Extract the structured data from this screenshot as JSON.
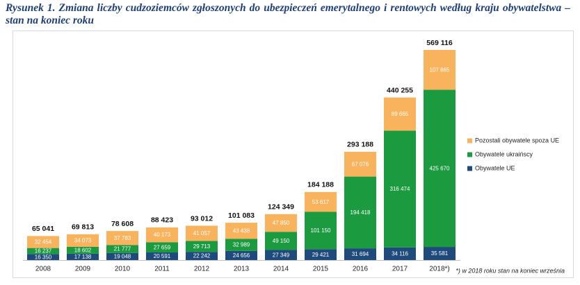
{
  "chart_data": {
    "type": "stacked-bar",
    "title": "Rysunek 1. Zmiana liczby cudzoziemców zgłoszonych do ubezpieczeń emerytalnego i rentowych według kraju obywatelstwa – stan na koniec roku",
    "categories": [
      "2008",
      "2009",
      "2010",
      "2011",
      "2012",
      "2013",
      "2014",
      "2015",
      "2016",
      "2017",
      "2018*)"
    ],
    "series": [
      {
        "name": "Obywatele UE",
        "color": "#1e4a7c",
        "values": [
          16350,
          17138,
          19048,
          20591,
          22242,
          24656,
          27349,
          29421,
          31694,
          34116,
          35581
        ],
        "value_labels": [
          "16 350",
          "17 138",
          "19 048",
          "20 591",
          "22 242",
          "24 656",
          "27 349",
          "29 421",
          "31 694",
          "34 116",
          "35 581"
        ]
      },
      {
        "name": "Obywatele ukraińscy",
        "color": "#1b9a3f",
        "values": [
          16237,
          18602,
          21777,
          27659,
          29713,
          32989,
          49150,
          101150,
          194418,
          316474,
          425670
        ],
        "value_labels": [
          "16 237",
          "18 602",
          "21 777",
          "27 659",
          "29 713",
          "32 989",
          "49 150",
          "101 150",
          "194 418",
          "316 474",
          "425 670"
        ]
      },
      {
        "name": "Pozostali obywatele spoza UE",
        "color": "#f9b35c",
        "values": [
          32454,
          34073,
          37783,
          40173,
          41057,
          43438,
          47850,
          53617,
          67076,
          89665,
          107865
        ],
        "value_labels": [
          "32 454",
          "34 073",
          "37 783",
          "40 173",
          "41 057",
          "43 438",
          "47 850",
          "53 617",
          "67 076",
          "89 665",
          "107 865"
        ]
      }
    ],
    "totals": [
      65041,
      69813,
      78608,
      88423,
      93012,
      101083,
      124349,
      184188,
      293188,
      440255,
      569116
    ],
    "total_labels": [
      "65 041",
      "69 813",
      "78 608",
      "88 423",
      "93 012",
      "101 083",
      "124 349",
      "184 188",
      "293 188",
      "440 255",
      "569 116"
    ],
    "legend": "right",
    "footnote": "*) w 2018 roku stan na koniec września"
  }
}
